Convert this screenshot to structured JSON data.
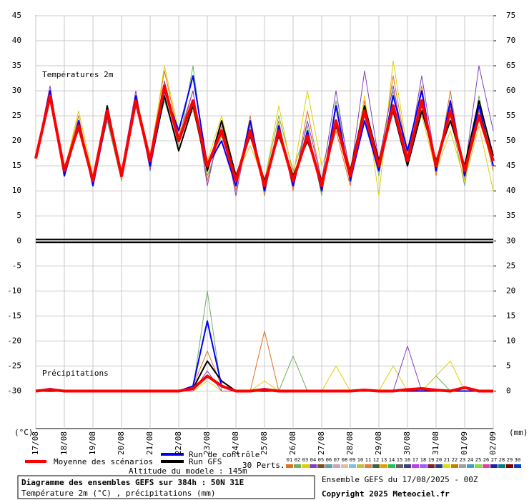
{
  "chart_data": {
    "type": "line",
    "title": "Diagramme des ensembles GEFS sur 384h : 50N 31E",
    "subtitle": "Température 2m (°C) , précipitations (mm)",
    "altitude": "Altitude du modele : 145m",
    "run_info": "Ensemble GEFS du 17/08/2025 - 00Z",
    "copyright": "Copyright 2025 Meteociel.fr",
    "ylabel": "(°C)",
    "y2label": "(mm)",
    "panel_labels": [
      "Températures 2m",
      "Précipitations"
    ],
    "grid": true,
    "x": [
      0,
      12,
      24,
      36,
      48,
      60,
      72,
      84,
      96,
      108,
      120,
      132,
      144,
      156,
      168,
      180,
      192,
      204,
      216,
      228,
      240,
      252,
      264,
      276,
      288,
      300,
      312,
      324,
      336,
      348,
      360,
      372,
      384
    ],
    "xlim": [
      0,
      384
    ],
    "xticks": [
      {
        "value": 0,
        "label": "17/08"
      },
      {
        "value": 24,
        "label": "18/08"
      },
      {
        "value": 48,
        "label": "19/08"
      },
      {
        "value": 72,
        "label": "20/08"
      },
      {
        "value": 96,
        "label": "21/08"
      },
      {
        "value": 120,
        "label": "22/08"
      },
      {
        "value": 144,
        "label": "23/08"
      },
      {
        "value": 168,
        "label": "24/08"
      },
      {
        "value": 192,
        "label": "25/08"
      },
      {
        "value": 216,
        "label": "26/08"
      },
      {
        "value": 240,
        "label": "27/08"
      },
      {
        "value": 264,
        "label": "28/08"
      },
      {
        "value": 288,
        "label": "29/08"
      },
      {
        "value": 312,
        "label": "30/08"
      },
      {
        "value": 336,
        "label": "31/08"
      },
      {
        "value": 360,
        "label": "01/09"
      },
      {
        "value": 384,
        "label": "02/09"
      }
    ],
    "ylim": [
      -37.5,
      45
    ],
    "yticks": [
      45,
      40,
      35,
      30,
      25,
      20,
      15,
      10,
      5,
      0,
      -5,
      -10,
      -15,
      -20,
      -25,
      -30
    ],
    "y2lim": [
      -7.5,
      75
    ],
    "y2ticks": [
      75,
      70,
      65,
      60,
      55,
      50,
      45,
      40,
      35,
      30,
      25,
      20,
      15,
      10,
      5,
      0
    ],
    "series": [
      {
        "name": "Moyenne des scénarios",
        "color": "#ff0000",
        "values": [
          16.5,
          29,
          14,
          23,
          12,
          26,
          13,
          28,
          16,
          31,
          20,
          28,
          15,
          22,
          12,
          22,
          11,
          22,
          12,
          21,
          11,
          24,
          13,
          26,
          15,
          27,
          16,
          28,
          15,
          26,
          14,
          25,
          16
        ],
        "precip_values": [
          0,
          0.3,
          0,
          0,
          0,
          0,
          0,
          0,
          0,
          0,
          0,
          0.5,
          3,
          1,
          0,
          0,
          0.3,
          0,
          0,
          0,
          0,
          0,
          0,
          0.2,
          0,
          0,
          0.3,
          0.5,
          0.2,
          0,
          0.7,
          0,
          0
        ]
      },
      {
        "name": "Run de contrôle",
        "color": "#0000ff",
        "values": [
          16.5,
          30,
          13,
          24,
          11,
          25,
          13,
          29,
          15,
          30,
          22,
          33,
          15,
          20,
          11,
          24,
          10,
          23,
          11,
          22,
          10,
          27,
          12,
          24,
          14,
          29,
          18,
          30,
          14,
          28,
          13,
          27,
          15
        ],
        "precip_values": [
          0,
          0.5,
          0,
          0,
          0,
          0,
          0,
          0,
          0,
          0,
          0,
          1,
          14,
          1,
          0,
          0,
          0.5,
          0,
          0,
          0,
          0,
          0,
          0,
          0,
          0,
          0,
          0,
          0,
          0,
          0,
          0,
          0,
          0
        ]
      },
      {
        "name": "Run GFS",
        "color": "#000000",
        "values": [
          16.5,
          29,
          13,
          23,
          12,
          27,
          13,
          28,
          15,
          29,
          18,
          27,
          14,
          24,
          13,
          21,
          12,
          21,
          13,
          20,
          12,
          23,
          14,
          27,
          16,
          26,
          15,
          26,
          16,
          24,
          15,
          28,
          17
        ],
        "precip_values": [
          0,
          0,
          0,
          0,
          0,
          0,
          0,
          0,
          0,
          0,
          0,
          0.5,
          6,
          2,
          0,
          0,
          0,
          0,
          0,
          0,
          0,
          0,
          0,
          0,
          0,
          0,
          0,
          0,
          0,
          0,
          0,
          0,
          0
        ]
      }
    ],
    "perturbations_label": "30 Perts.",
    "perturbation_keys": [
      {
        "label": "01",
        "color": "#e07020",
        "values": [
          16.5,
          28,
          14,
          25,
          11,
          26,
          14,
          29,
          17,
          34,
          21,
          30,
          12,
          23,
          10,
          25,
          9,
          24,
          10,
          26,
          12,
          22,
          11,
          28,
          14,
          33,
          17,
          31,
          13,
          30,
          12,
          26,
          14
        ],
        "precip_values": [
          0,
          0,
          0,
          0,
          0,
          0,
          0,
          0,
          0,
          0,
          0,
          1,
          8,
          1,
          0,
          0,
          12,
          0,
          0,
          0,
          0,
          0,
          0,
          0,
          0,
          0,
          0,
          0,
          0,
          0,
          0,
          0,
          0
        ]
      },
      {
        "label": "02",
        "color": "#70b060",
        "values": [
          16.5,
          29,
          15,
          22,
          12,
          24,
          12,
          27,
          16,
          28,
          19,
          35,
          13,
          21,
          12,
          23,
          12,
          25,
          14,
          23,
          9,
          28,
          14,
          25,
          13,
          30,
          15,
          27,
          16,
          25,
          11,
          29,
          15
        ],
        "precip_values": [
          0,
          0,
          0,
          0,
          0,
          0,
          0,
          0,
          0,
          0,
          0,
          0.5,
          20,
          0,
          0,
          0,
          0,
          0,
          7,
          0,
          0,
          0,
          0,
          0,
          0,
          0,
          0,
          0,
          3,
          0,
          0,
          0,
          0
        ]
      },
      {
        "label": "03",
        "color": "#e0d000",
        "values": [
          16.5,
          30,
          14,
          26,
          13,
          25,
          13,
          28,
          16,
          35,
          22,
          26,
          16,
          25,
          13,
          19,
          12,
          27,
          13,
          30,
          15,
          23,
          12,
          29,
          9,
          36,
          18,
          25,
          14,
          22,
          12,
          23,
          10
        ],
        "precip_values": [
          0,
          0,
          0,
          0,
          0,
          0,
          0,
          0,
          0,
          0,
          0,
          0,
          2,
          0,
          0,
          0,
          2,
          0,
          0,
          0,
          0,
          5,
          0,
          0,
          0,
          5,
          0,
          0,
          3,
          6,
          0,
          0,
          0
        ]
      },
      {
        "label": "04",
        "color": "#8040c0",
        "values": [
          16.5,
          31,
          13,
          24,
          12,
          26,
          14,
          30,
          14,
          32,
          20,
          30,
          11,
          24,
          9,
          24,
          10,
          22,
          11,
          24,
          12,
          30,
          13,
          34,
          16,
          31,
          16,
          33,
          15,
          27,
          14,
          35,
          22
        ],
        "precip_values": [
          0,
          0,
          0,
          0,
          0,
          0,
          0,
          0,
          0,
          0,
          0,
          0,
          4,
          0,
          0,
          0,
          0,
          0,
          0,
          0,
          0,
          0,
          0,
          0,
          0,
          0,
          9,
          0,
          0,
          0,
          0,
          0,
          0
        ]
      },
      {
        "label": "05",
        "color": "#805020"
      },
      {
        "label": "06",
        "color": "#60a0a0"
      },
      {
        "label": "07",
        "color": "#d0a0c0"
      },
      {
        "label": "08",
        "color": "#e0c0a0"
      },
      {
        "label": "09",
        "color": "#80c0e0"
      },
      {
        "label": "10",
        "color": "#c0c040"
      },
      {
        "label": "11",
        "color": "#e08040"
      },
      {
        "label": "12",
        "color": "#406040"
      },
      {
        "label": "13",
        "color": "#e0a000"
      },
      {
        "label": "14",
        "color": "#20c060"
      },
      {
        "label": "15",
        "color": "#606060"
      },
      {
        "label": "16",
        "color": "#404080"
      },
      {
        "label": "17",
        "color": "#c040e0"
      },
      {
        "label": "18",
        "color": "#a060ff"
      },
      {
        "label": "19",
        "color": "#802020"
      },
      {
        "label": "20",
        "color": "#204080"
      },
      {
        "label": "21",
        "color": "#e0e000"
      },
      {
        "label": "22",
        "color": "#c08000"
      },
      {
        "label": "23",
        "color": "#a0a0a0"
      },
      {
        "label": "24",
        "color": "#40a0c0"
      },
      {
        "label": "25",
        "color": "#80e040"
      },
      {
        "label": "26",
        "color": "#e040a0"
      },
      {
        "label": "27",
        "color": "#2020a0"
      },
      {
        "label": "28",
        "color": "#008080"
      },
      {
        "label": "29",
        "color": "#800000"
      },
      {
        "label": "30",
        "color": "#0040c0"
      }
    ]
  }
}
